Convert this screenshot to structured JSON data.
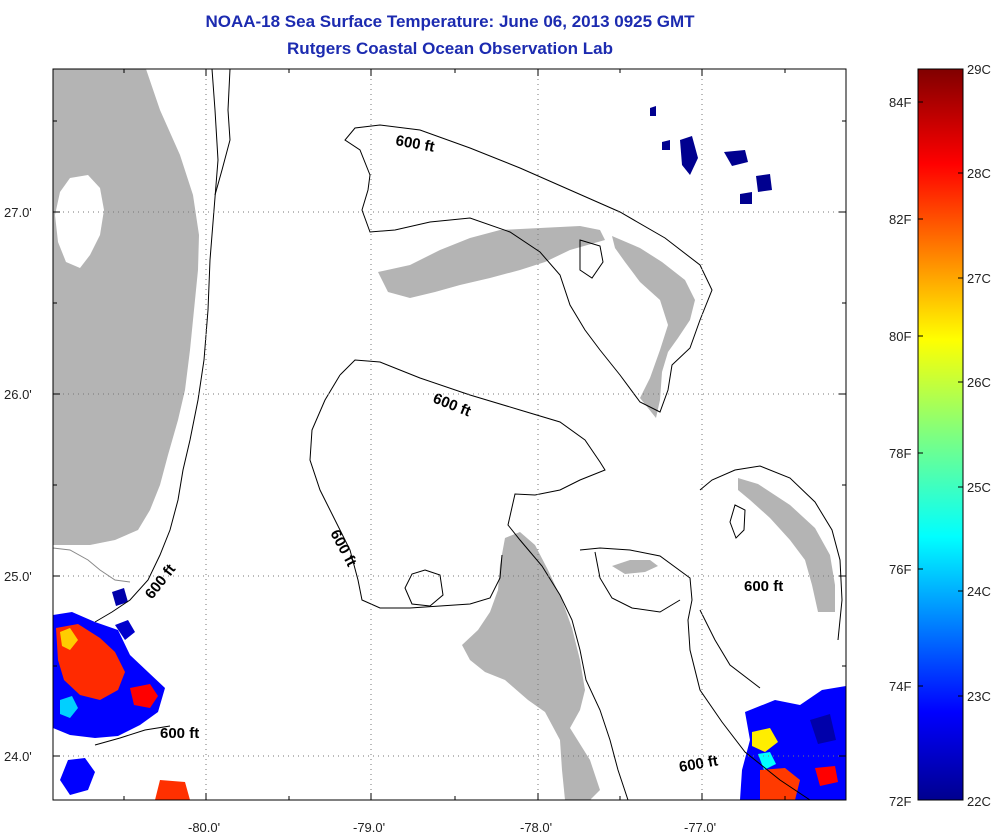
{
  "header": {
    "title": "NOAA-18 Sea Surface Temperature:  June 06, 2013 0925 GMT",
    "subtitle": "Rutgers Coastal Ocean Observation Lab"
  },
  "map": {
    "lat_ticks": [
      "27.0'",
      "26.0'",
      "25.0'",
      "24.0'"
    ],
    "lon_ticks": [
      "-80.0'",
      "-79.0'",
      "-78.0'",
      "-77.0'"
    ],
    "contour_labels": [
      "600 ft",
      "600 ft",
      "600 ft",
      "600 ft",
      "600 ft",
      "600 ft",
      "600 ft"
    ]
  },
  "colorbar": {
    "celsius": [
      "29C",
      "28C",
      "27C",
      "26C",
      "25C",
      "24C",
      "23C",
      "22C"
    ],
    "fahrenheit": [
      "84F",
      "82F",
      "80F",
      "78F",
      "76F",
      "74F",
      "72F"
    ]
  },
  "colors": {
    "land": "#b4b4b4",
    "title": "#1c2bb0",
    "gridline": "#777777"
  }
}
